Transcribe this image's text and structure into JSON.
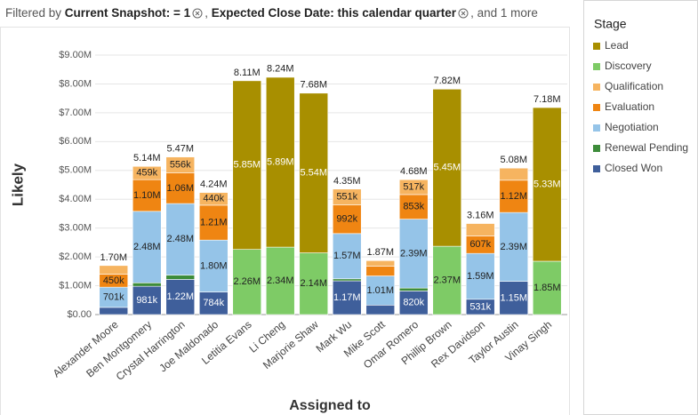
{
  "filters": {
    "prefix": "Filtered by",
    "items": [
      "Current Snapshot: = 1",
      "Expected Close Date: this calendar quarter"
    ],
    "more": ", and 1 more"
  },
  "chart_data": {
    "type": "stacked_bar",
    "xlabel": "Assigned to",
    "ylabel": "Likely",
    "legend_title": "Stage",
    "legend": "right",
    "categories": [
      "Alexander Moore",
      "Ben Montgomery",
      "Crystal Harrington",
      "Joe Maldonado",
      "Letitia Evans",
      "Li Cheng",
      "Marjorie Shaw",
      "Mark Wu",
      "Mike Scott",
      "Omar Romero",
      "Phillip Brown",
      "Rex Davidson",
      "Taylor Austin",
      "Vinay Singh"
    ],
    "ylim": [
      0,
      9000000
    ],
    "yticks": [
      {
        "value": 0,
        "label": "$0.00"
      },
      {
        "value": 1000000,
        "label": "$1.00M"
      },
      {
        "value": 2000000,
        "label": "$2.00M"
      },
      {
        "value": 3000000,
        "label": "$3.00M"
      },
      {
        "value": 4000000,
        "label": "$4.00M"
      },
      {
        "value": 5000000,
        "label": "$5.00M"
      },
      {
        "value": 6000000,
        "label": "$6.00M"
      },
      {
        "value": 7000000,
        "label": "$7.00M"
      },
      {
        "value": 8000000,
        "label": "$8.00M"
      },
      {
        "value": 9000000,
        "label": "$9.00M"
      }
    ],
    "grid": true,
    "series": [
      {
        "name": "Closed Won",
        "color": "#3f5f9b",
        "values": [
          250000,
          981000,
          1220000,
          784000,
          0,
          0,
          0,
          1170000,
          330000,
          820000,
          0,
          531000,
          1150000,
          0
        ],
        "value_labels": [
          null,
          "981k",
          "1.22M",
          "784k",
          null,
          null,
          null,
          "1.17M",
          null,
          "820k",
          null,
          "531k",
          "1.15M",
          null
        ]
      },
      {
        "name": "Renewal Pending",
        "color": "#3d8c3a",
        "values": [
          0,
          120000,
          150000,
          0,
          0,
          0,
          0,
          70000,
          0,
          100000,
          0,
          0,
          0,
          0
        ]
      },
      {
        "name": "Negotiation",
        "color": "#95c4e8",
        "values": [
          701000,
          2480000,
          2480000,
          1800000,
          0,
          0,
          0,
          1570000,
          1010000,
          2390000,
          0,
          1590000,
          2390000,
          0
        ],
        "value_labels": [
          "701k",
          "2.48M",
          "2.48M",
          "1.80M",
          null,
          null,
          null,
          "1.57M",
          "1.01M",
          "2.39M",
          null,
          "1.59M",
          "2.39M",
          null
        ]
      },
      {
        "name": "Evaluation",
        "color": "#ef8512",
        "values": [
          450000,
          1100000,
          1060000,
          1210000,
          0,
          0,
          0,
          992000,
          340000,
          853000,
          0,
          607000,
          1120000,
          0
        ],
        "value_labels": [
          "450k",
          "1.10M",
          "1.06M",
          "1.21M",
          null,
          null,
          null,
          "992k",
          null,
          "853k",
          null,
          "607k",
          "1.12M",
          null
        ]
      },
      {
        "name": "Qualification",
        "color": "#f6b460",
        "values": [
          300000,
          459000,
          556000,
          440000,
          0,
          0,
          0,
          551000,
          190000,
          517000,
          0,
          430000,
          420000,
          0
        ],
        "value_labels": [
          null,
          "459k",
          "556k",
          "440k",
          null,
          null,
          null,
          "551k",
          null,
          "517k",
          null,
          null,
          null,
          null
        ]
      },
      {
        "name": "Discovery",
        "color": "#7ecb66",
        "values": [
          0,
          0,
          0,
          0,
          2260000,
          2340000,
          2140000,
          0,
          0,
          0,
          2370000,
          0,
          0,
          1850000
        ],
        "value_labels": [
          null,
          null,
          null,
          null,
          "2.26M",
          "2.34M",
          "2.14M",
          null,
          null,
          null,
          "2.37M",
          null,
          null,
          "1.85M"
        ]
      },
      {
        "name": "Lead",
        "color": "#a88f00",
        "values": [
          0,
          0,
          0,
          0,
          5850000,
          5890000,
          5540000,
          0,
          0,
          0,
          5450000,
          0,
          0,
          5330000
        ],
        "value_labels": [
          null,
          null,
          null,
          null,
          "5.85M",
          "5.89M",
          "5.54M",
          null,
          null,
          null,
          "5.45M",
          null,
          null,
          "5.33M"
        ]
      }
    ],
    "totals": [
      1700000,
      5140000,
      5470000,
      4240000,
      8110000,
      8240000,
      7680000,
      4350000,
      1870000,
      4680000,
      7820000,
      3160000,
      5080000,
      7180000
    ],
    "total_labels": [
      "1.70M",
      "5.14M",
      "5.47M",
      "4.24M",
      "8.11M",
      "8.24M",
      "7.68M",
      "4.35M",
      "1.87M",
      "4.68M",
      "7.82M",
      "3.16M",
      "5.08M",
      "7.18M"
    ]
  }
}
